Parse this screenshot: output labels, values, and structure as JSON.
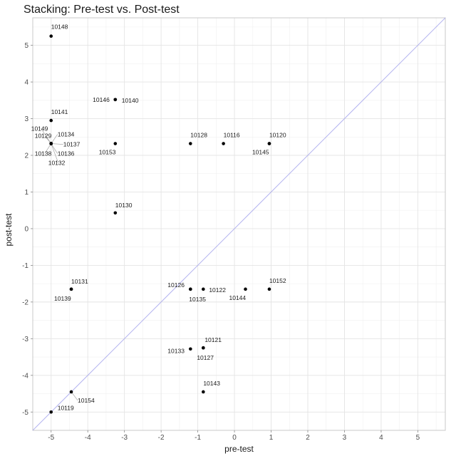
{
  "chart_data": {
    "type": "scatter",
    "title": "Stacking: Pre-test vs. Post-test",
    "xlabel": "pre-test",
    "ylabel": "post-test",
    "xlim": [
      -5.5,
      5.75
    ],
    "ylim": [
      -5.5,
      5.75
    ],
    "xticks": [
      -5,
      -4,
      -3,
      -2,
      -1,
      0,
      1,
      2,
      3,
      4,
      5
    ],
    "yticks": [
      -5,
      -4,
      -3,
      -2,
      -1,
      0,
      1,
      2,
      3,
      4,
      5
    ],
    "grid": true,
    "reference_line": {
      "type": "identity",
      "color": "#b4b4f0"
    },
    "point_color": "#000000",
    "points": [
      {
        "id": "10148",
        "x": -5.0,
        "y": 5.25
      },
      {
        "id": "10146",
        "x": -3.25,
        "y": 3.52
      },
      {
        "id": "10140",
        "x": -3.25,
        "y": 3.52
      },
      {
        "id": "10141",
        "x": -5.0,
        "y": 2.95
      },
      {
        "id": "10149",
        "x": -5.0,
        "y": 2.32
      },
      {
        "id": "10129",
        "x": -5.0,
        "y": 2.32
      },
      {
        "id": "10134",
        "x": -5.0,
        "y": 2.32
      },
      {
        "id": "10137",
        "x": -5.0,
        "y": 2.32
      },
      {
        "id": "10138",
        "x": -5.0,
        "y": 2.32
      },
      {
        "id": "10136",
        "x": -5.0,
        "y": 2.32
      },
      {
        "id": "10132",
        "x": -5.0,
        "y": 2.32
      },
      {
        "id": "10153",
        "x": -3.25,
        "y": 2.32
      },
      {
        "id": "10128",
        "x": -1.2,
        "y": 2.32
      },
      {
        "id": "10116",
        "x": -0.3,
        "y": 2.32
      },
      {
        "id": "10120",
        "x": 0.95,
        "y": 2.32
      },
      {
        "id": "10145",
        "x": 0.95,
        "y": 2.32
      },
      {
        "id": "10130",
        "x": -3.25,
        "y": 0.43
      },
      {
        "id": "10131",
        "x": -4.45,
        "y": -1.65
      },
      {
        "id": "10139",
        "x": -4.45,
        "y": -1.65
      },
      {
        "id": "10126",
        "x": -1.2,
        "y": -1.65
      },
      {
        "id": "10135",
        "x": -1.2,
        "y": -1.65
      },
      {
        "id": "10122",
        "x": -0.85,
        "y": -1.65
      },
      {
        "id": "10144",
        "x": 0.3,
        "y": -1.65
      },
      {
        "id": "10152",
        "x": 0.95,
        "y": -1.65
      },
      {
        "id": "10121",
        "x": -0.85,
        "y": -3.25
      },
      {
        "id": "10133",
        "x": -1.2,
        "y": -3.28
      },
      {
        "id": "10127",
        "x": -0.85,
        "y": -3.25
      },
      {
        "id": "10143",
        "x": -0.85,
        "y": -4.45
      },
      {
        "id": "10154",
        "x": -4.45,
        "y": -4.45
      },
      {
        "id": "10119",
        "x": -5.0,
        "y": -5.0
      }
    ]
  }
}
